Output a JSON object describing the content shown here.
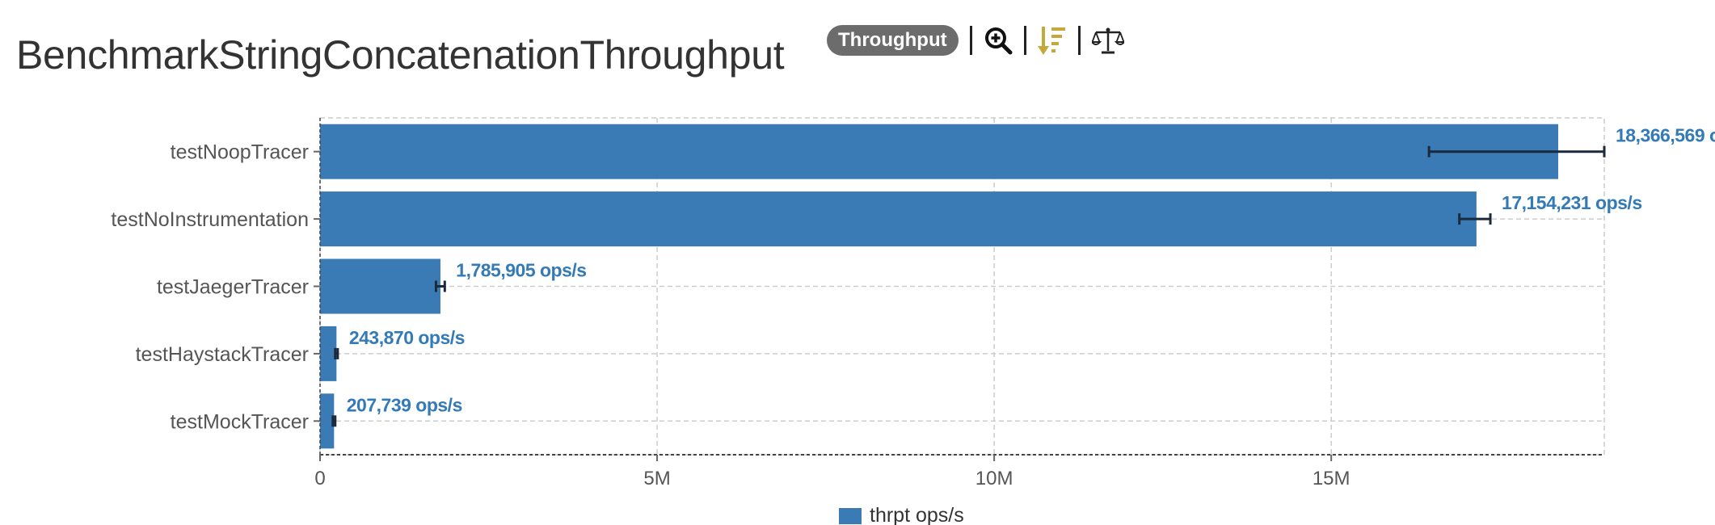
{
  "page": {
    "title": "BenchmarkStringConcatenationThroughput",
    "mode_badge": "Throughput"
  },
  "toolbar": {
    "icons": [
      "zoom-in-icon",
      "sort-descending-icon",
      "balance-scale-icon"
    ]
  },
  "colors": {
    "bar": "#3a7bb6",
    "error_bar": "#1a2a3c",
    "data_label": "#337ab7",
    "badge": "#6c6c6c",
    "sort_icon": "#c4a93a",
    "grid": "#cccccc"
  },
  "chart_data": {
    "type": "bar",
    "orientation": "horizontal",
    "categories": [
      "testNoopTracer",
      "testNoInstrumentation",
      "testJaegerTracer",
      "testHaystackTracer",
      "testMockTracer"
    ],
    "series": [
      {
        "name": "thrpt ops/s",
        "values": [
          18366569,
          17154231,
          1785905,
          243870,
          207739
        ],
        "error_low": [
          16450000,
          16900000,
          1720000,
          225000,
          190000
        ],
        "error_high": [
          19050000,
          17360000,
          1850000,
          262000,
          225000
        ],
        "labels": [
          "18,366,569 o",
          "17,154,231 ops/s",
          "1,785,905 ops/s",
          "243,870 ops/s",
          "207,739 ops/s"
        ]
      }
    ],
    "x_ticks": [
      0,
      5000000,
      10000000,
      15000000
    ],
    "x_tick_labels": [
      "0",
      "5M",
      "10M",
      "15M"
    ],
    "xlim": [
      0,
      19050000
    ],
    "grid": true,
    "legend": "bottom-center"
  }
}
